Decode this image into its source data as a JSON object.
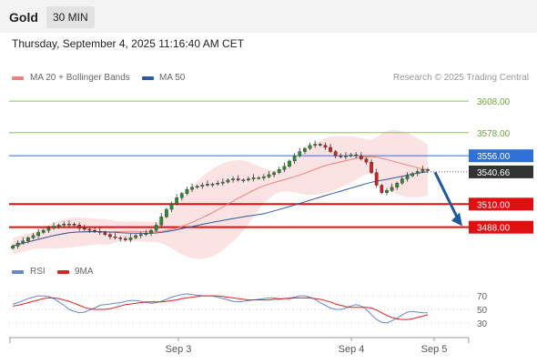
{
  "header": {
    "title": "Gold",
    "timeframe_label": "30 MIN"
  },
  "chart_datetime": "Thursday, September 4, 2025 11:16:40 AM CET",
  "legend": {
    "ma_bb_label": "MA 20 + Bollinger Bands",
    "ma50_label": "MA 50",
    "rsi_label": "RSI",
    "ma9_label": "9MA",
    "ma_bb_color": "#f08080",
    "ma50_color": "#2b5c9e",
    "rsi_color": "#6688cc",
    "ma9_color": "#dd2222"
  },
  "credit": "Research © 2025 Trading Central",
  "chart_data": [
    {
      "type": "candlestick",
      "x_labels": [
        "Sep 3",
        "Sep 4",
        "Sep 5"
      ],
      "ylim": [
        3460,
        3622
      ],
      "levels": [
        {
          "value": 3608.0,
          "label": "3608.00",
          "kind": "target",
          "color": "#8fc45a"
        },
        {
          "value": 3578.0,
          "label": "3578.00",
          "kind": "target",
          "color": "#8fc45a"
        },
        {
          "value": 3556.0,
          "label": "3556.00",
          "kind": "pivot",
          "color": "#2f6fd8"
        },
        {
          "value": 3510.0,
          "label": "3510.00",
          "kind": "support",
          "color": "#e01010"
        },
        {
          "value": 3488.0,
          "label": "3488.00",
          "kind": "support",
          "color": "#e01010"
        }
      ],
      "last_price": {
        "value": 3540.66,
        "label": "3540.66"
      },
      "close": [
        3470,
        3473,
        3475,
        3478,
        3480,
        3483,
        3485,
        3487,
        3489,
        3490,
        3491,
        3491,
        3490,
        3487,
        3486,
        3485,
        3484,
        3483,
        3481,
        3479,
        3478,
        3477,
        3476,
        3478,
        3480,
        3481,
        3482,
        3485,
        3490,
        3498,
        3505,
        3510,
        3516,
        3520,
        3524,
        3526,
        3527,
        3528,
        3529,
        3529,
        3530,
        3531,
        3533,
        3534,
        3533,
        3533,
        3534,
        3535,
        3535,
        3536,
        3538,
        3540,
        3543,
        3546,
        3551,
        3556,
        3560,
        3563,
        3566,
        3567,
        3566,
        3564,
        3560,
        3556,
        3555,
        3556,
        3557,
        3556,
        3553,
        3550,
        3540,
        3528,
        3521,
        3523,
        3526,
        3530,
        3534,
        3537,
        3539,
        3541,
        3543,
        3542
      ],
      "rsi": {
        "ticks": [
          70,
          50,
          30
        ],
        "ylim": [
          15,
          85
        ],
        "rsi": [
          58,
          60,
          63,
          66,
          68,
          70,
          70,
          69,
          66,
          61,
          56,
          50,
          47,
          45,
          46,
          49,
          52,
          56,
          57,
          58,
          59,
          60,
          62,
          63,
          63,
          62,
          60,
          59,
          60,
          62,
          65,
          68,
          70,
          72,
          73,
          72,
          71,
          70,
          70,
          70,
          68,
          66,
          64,
          62,
          61,
          62,
          63,
          64,
          65,
          66,
          67,
          67,
          66,
          66,
          67,
          68,
          70,
          70,
          68,
          65,
          60,
          56,
          52,
          50,
          50,
          52,
          55,
          57,
          55,
          50,
          42,
          35,
          31,
          30,
          33,
          37,
          42,
          46,
          47,
          46,
          45,
          45
        ],
        "ma9": [
          55,
          56,
          58,
          60,
          62,
          64,
          66,
          67,
          67,
          66,
          64,
          62,
          59,
          56,
          53,
          51,
          50,
          50,
          50,
          51,
          53,
          55,
          57,
          58,
          59,
          60,
          61,
          61,
          61,
          61,
          62,
          63,
          64,
          66,
          67,
          68,
          69,
          70,
          70,
          70,
          70,
          69,
          68,
          67,
          66,
          65,
          64,
          64,
          64,
          64,
          64,
          65,
          65,
          66,
          66,
          67,
          67,
          67,
          67,
          66,
          65,
          63,
          61,
          58,
          56,
          54,
          53,
          53,
          53,
          53,
          52,
          49,
          45,
          41,
          38,
          36,
          35,
          35,
          36,
          38,
          40,
          42
        ]
      }
    }
  ]
}
